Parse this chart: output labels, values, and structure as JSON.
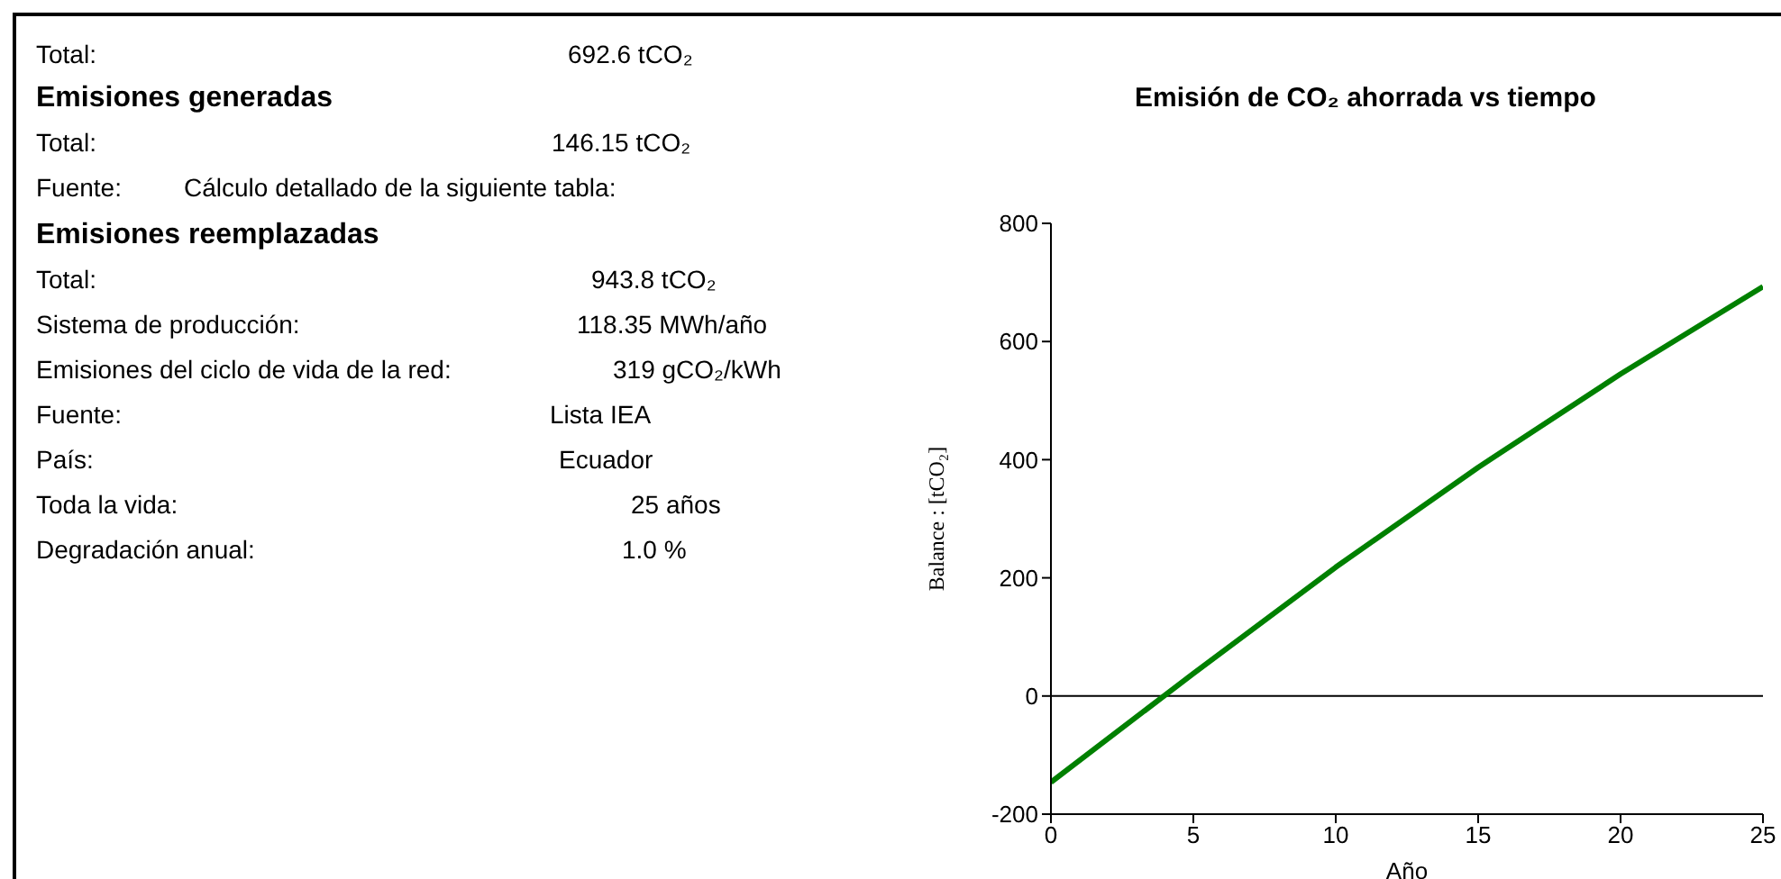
{
  "chart_data": [
    {
      "type": "other",
      "annotations": [
        "Total:",
        "692.6 tCO₂",
        "Emisiones generadas",
        "Total:",
        "146.15 tCO₂",
        "Fuente:",
        "Cálculo detallado de la siguiente tabla:",
        "Emisiones reemplazadas",
        "Total:",
        "943.8 tCO₂",
        "Sistema de producción:",
        "118.35 MWh/año",
        "Emisiones del ciclo de vida de la red:",
        "319 gCO₂/kWh",
        "Fuente:",
        "Lista IEA",
        "País:",
        "Ecuador",
        "Toda la vida:",
        "25 años",
        "Degradación anual:",
        "1.0 %"
      ]
    },
    {
      "type": "line",
      "title": "Emisión de CO₂ ahorrada vs tiempo",
      "xlabel": "Año",
      "ylabel": "Balance : [tCO₂]",
      "x": [
        0,
        5,
        10,
        15,
        20,
        25
      ],
      "series": [
        {
          "color": "#008000",
          "values": [
            -146,
            38,
            218,
            387,
            545,
            693
          ]
        }
      ],
      "xlim": [
        0,
        25
      ],
      "xticks": [
        0,
        5,
        10,
        15,
        20,
        25
      ],
      "ylim": [
        -200,
        800
      ],
      "yticks": [
        -200,
        0,
        200,
        400,
        600,
        800
      ],
      "ref_lines": [
        {
          "axis": "y",
          "value": 0,
          "color": "#000000"
        }
      ],
      "grid": false,
      "legend": false,
      "marker": "none",
      "line_style": "solid"
    }
  ]
}
